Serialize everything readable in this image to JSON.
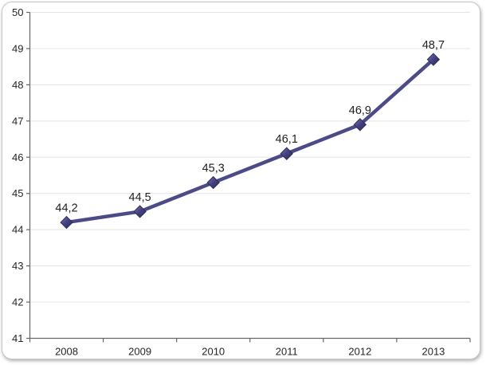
{
  "chart_data": {
    "type": "line",
    "title": "",
    "xlabel": "",
    "ylabel": "",
    "categories": [
      "2008",
      "2009",
      "2010",
      "2011",
      "2012",
      "2013"
    ],
    "series": [
      {
        "name": "",
        "values": [
          44.2,
          44.5,
          45.3,
          46.1,
          46.9,
          48.7
        ],
        "labels": [
          "44,2",
          "44,5",
          "45,3",
          "46,1",
          "46,9",
          "48,7"
        ]
      }
    ],
    "ylim": [
      41,
      50
    ],
    "ytick_step": 1,
    "grid": "horizontal",
    "legend": "none",
    "marker_shape": "diamond",
    "decimal_separator": ",",
    "colors": {
      "line": "#4d4a88",
      "marker_fill": "#43407e",
      "marker_highlight": "#7975b2",
      "marker_edge": "#2e2c5b",
      "gridline": "#e4e4e4",
      "axis": "#666666",
      "tick_text": "#262626",
      "label_text": "#1f1f1f",
      "frame_border": "#c7c7c7",
      "background": "#ffffff"
    }
  }
}
